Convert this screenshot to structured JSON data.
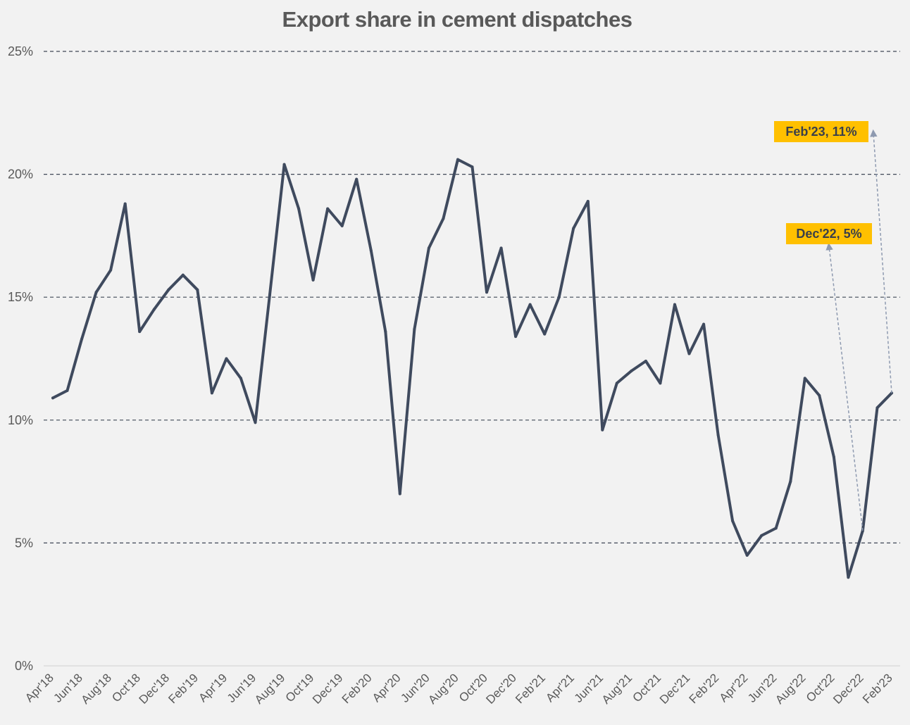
{
  "chart_data": {
    "type": "line",
    "title": "Export share in cement dispatches",
    "xlabel": "",
    "ylabel": "",
    "ylim": [
      0,
      25
    ],
    "yticks": [
      "0%",
      "5%",
      "10%",
      "15%",
      "20%",
      "25%"
    ],
    "grid": "horizontal dashed",
    "x": [
      "Apr'18",
      "May'18",
      "Jun'18",
      "Jul'18",
      "Aug'18",
      "Sep'18",
      "Oct'18",
      "Nov'18",
      "Dec'18",
      "Jan'19",
      "Feb'19",
      "Mar'19",
      "Apr'19",
      "May'19",
      "Jun'19",
      "Jul'19",
      "Aug'19",
      "Sep'19",
      "Oct'19",
      "Nov'19",
      "Dec'19",
      "Jan'20",
      "Feb'20",
      "Mar'20",
      "Apr'20",
      "May'20",
      "Jun'20",
      "Jul'20",
      "Aug'20",
      "Sep'20",
      "Oct'20",
      "Nov'20",
      "Dec'20",
      "Jan'21",
      "Feb'21",
      "Mar'21",
      "Apr'21",
      "May'21",
      "Jun'21",
      "Jul'21",
      "Aug'21",
      "Sep'21",
      "Oct'21",
      "Nov'21",
      "Dec'21",
      "Jan'22",
      "Feb'22",
      "Mar'22",
      "Apr'22",
      "May'22",
      "Jun'22",
      "Jul'22",
      "Aug'22",
      "Sep'22",
      "Oct'22",
      "Nov'22",
      "Dec'22",
      "Jan'23",
      "Feb'23"
    ],
    "xtick_labels": [
      "Apr'18",
      "Jun'18",
      "Aug'18",
      "Oct'18",
      "Dec'18",
      "Feb'19",
      "Apr'19",
      "Jun'19",
      "Aug'19",
      "Oct'19",
      "Dec'19",
      "Feb'20",
      "Apr'20",
      "Jun'20",
      "Aug'20",
      "Oct'20",
      "Dec'20",
      "Feb'21",
      "Apr'21",
      "Jun'21",
      "Aug'21",
      "Oct'21",
      "Dec'21",
      "Feb'22",
      "Apr'22",
      "Jun'22",
      "Aug'22",
      "Oct'22",
      "Dec'22",
      "Feb'23"
    ],
    "series": [
      {
        "color": "#3f4a5e",
        "values": [
          10.9,
          11.2,
          13.3,
          15.2,
          16.1,
          18.8,
          13.6,
          14.5,
          15.3,
          15.9,
          15.3,
          11.1,
          12.5,
          11.7,
          9.9,
          15.1,
          20.4,
          18.6,
          15.7,
          18.6,
          17.9,
          19.8,
          16.9,
          13.6,
          7.0,
          13.7,
          17.0,
          18.2,
          20.6,
          20.3,
          15.2,
          17.0,
          13.4,
          14.7,
          13.5,
          15.0,
          17.8,
          18.9,
          9.6,
          11.5,
          12.0,
          12.4,
          11.5,
          14.7,
          12.7,
          13.9,
          9.4,
          5.9,
          4.5,
          5.3,
          5.6,
          7.5,
          11.7,
          11.0,
          8.5,
          3.6,
          5.5,
          10.5,
          11.1
        ]
      }
    ],
    "annotations": [
      {
        "text": "Feb'23, 11%",
        "x": "Feb'23",
        "y": 11.1,
        "box_color": "#ffc000"
      },
      {
        "text": "Dec'22, 5%",
        "x": "Dec'22",
        "y": 5.5,
        "box_color": "#ffc000"
      }
    ]
  }
}
